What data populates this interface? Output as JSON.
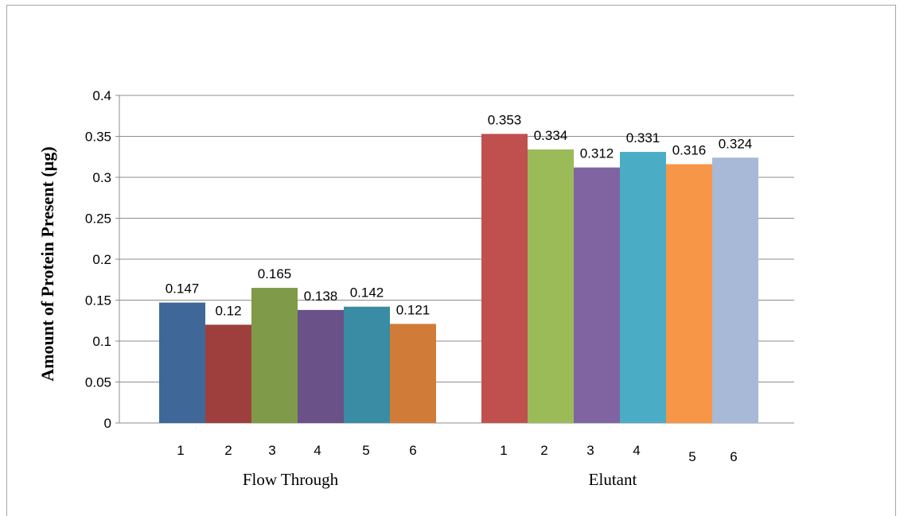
{
  "chart_data": {
    "type": "bar",
    "ylabel": "Amount of Protein Present (µg)",
    "ylim": [
      0,
      0.4
    ],
    "ytick_step": 0.05,
    "yticks": [
      "0",
      "0.05",
      "0.1",
      "0.15",
      "0.2",
      "0.25",
      "0.3",
      "0.35",
      "0.4"
    ],
    "grid": true,
    "legend": "none",
    "groups": [
      {
        "name": "Flow Through",
        "categories": [
          "1",
          "2",
          "3",
          "4",
          "5",
          "6"
        ],
        "values": [
          0.147,
          0.12,
          0.165,
          0.138,
          0.142,
          0.121
        ],
        "labels": [
          "0.147",
          "0.12",
          "0.165",
          "0.138",
          "0.142",
          "0.121"
        ],
        "colors": [
          "#3f6899",
          "#9e3f3d",
          "#7f9a48",
          "#6a5187",
          "#398ca3",
          "#d07b38"
        ]
      },
      {
        "name": "Elutant",
        "categories": [
          "1",
          "2",
          "3",
          "4",
          "5",
          "6"
        ],
        "values": [
          0.353,
          0.334,
          0.312,
          0.331,
          0.316,
          0.324
        ],
        "labels": [
          "0.353",
          "0.334",
          "0.312",
          "0.331",
          "0.316",
          "0.324"
        ],
        "colors": [
          "#c0504d",
          "#9bbb59",
          "#8064a2",
          "#4bacc6",
          "#f79646",
          "#a7b9d7"
        ]
      }
    ]
  }
}
